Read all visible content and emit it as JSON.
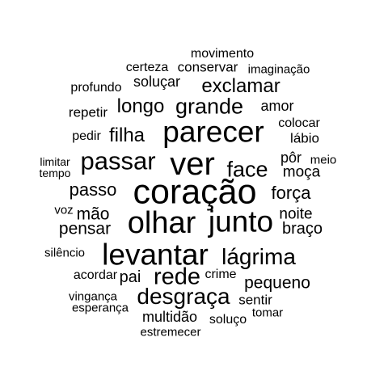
{
  "words": [
    {
      "text": "movimento"
    },
    {
      "text": "certeza"
    },
    {
      "text": "conservar"
    },
    {
      "text": "imaginação"
    },
    {
      "text": "profundo"
    },
    {
      "text": "soluçar"
    },
    {
      "text": "exclamar"
    },
    {
      "text": "repetir"
    },
    {
      "text": "longo"
    },
    {
      "text": "grande"
    },
    {
      "text": "amor"
    },
    {
      "text": "pedir"
    },
    {
      "text": "filha"
    },
    {
      "text": "parecer"
    },
    {
      "text": "colocar"
    },
    {
      "text": "lábio"
    },
    {
      "text": "passar"
    },
    {
      "text": "limitar"
    },
    {
      "text": "tempo"
    },
    {
      "text": "ver"
    },
    {
      "text": "face"
    },
    {
      "text": "pôr"
    },
    {
      "text": "meio"
    },
    {
      "text": "moça"
    },
    {
      "text": "passo"
    },
    {
      "text": "coração"
    },
    {
      "text": "força"
    },
    {
      "text": "voz"
    },
    {
      "text": "mão"
    },
    {
      "text": "olhar"
    },
    {
      "text": "junto"
    },
    {
      "text": "noite"
    },
    {
      "text": "pensar"
    },
    {
      "text": "braço"
    },
    {
      "text": "silêncio"
    },
    {
      "text": "levantar"
    },
    {
      "text": "lágrima"
    },
    {
      "text": "acordar"
    },
    {
      "text": "pai"
    },
    {
      "text": "rede"
    },
    {
      "text": "crime"
    },
    {
      "text": "pequeno"
    },
    {
      "text": "vingança"
    },
    {
      "text": "desgraça"
    },
    {
      "text": "sentir"
    },
    {
      "text": "esperança"
    },
    {
      "text": "tomar"
    },
    {
      "text": "multidão"
    },
    {
      "text": "soluço"
    },
    {
      "text": "estremecer"
    }
  ]
}
